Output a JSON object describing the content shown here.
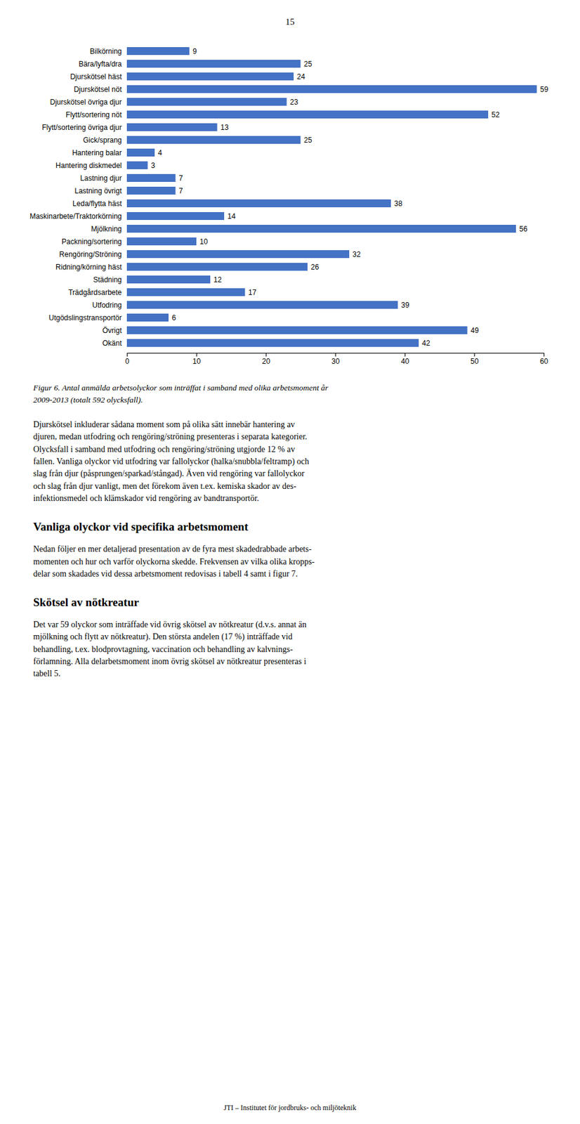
{
  "chart_data": {
    "type": "bar",
    "orientation": "horizontal",
    "categories": [
      "Bilkörning",
      "Bära/lyfta/dra",
      "Djurskötsel häst",
      "Djurskötsel nöt",
      "Djurskötsel övriga djur",
      "Flytt/sortering nöt",
      "Flytt/sortering övriga djur",
      "Gick/sprang",
      "Hantering balar",
      "Hantering diskmedel",
      "Lastning djur",
      "Lastning övrigt",
      "Leda/flytta häst",
      "Maskinarbete/Traktorkörning",
      "Mjölkning",
      "Packning/sortering",
      "Rengöring/Ströning",
      "Ridning/körning häst",
      "Städning",
      "Trädgårdsarbete",
      "Utfodring",
      "Utgödslingstransportör",
      "Övrigt",
      "Okänt"
    ],
    "values": [
      9,
      25,
      24,
      59,
      23,
      52,
      13,
      25,
      4,
      3,
      7,
      7,
      38,
      14,
      56,
      10,
      32,
      26,
      12,
      17,
      39,
      6,
      49,
      42
    ],
    "color": "#4472C4",
    "xlim": [
      0,
      60
    ],
    "xticks": [
      0,
      10,
      20,
      30,
      40,
      50,
      60
    ],
    "data_labels": true,
    "grid": false,
    "page_number": "15",
    "caption": "Figur 6. Antal anmälda arbetsolyckor som inträffat i samband med olika arbetsmoment år\n2009-2013 (totalt 592 olycksfall).",
    "sections": [
      {
        "text": "Djurskötsel inkluderar sådana moment som på olika sätt innebär hantering av\ndjuren, medan utfodring och rengöring/ströning presenteras i separata kategorier.\nOlycksfall i samband med utfodring och rengöring/ströning utgjorde 12 % av\nfallen. Vanliga olyckor vid utfodring var fallolyckor (halka/snubbla/feltramp) och\nslag från djur (påsprungen/sparkad/stångad). Även vid rengöring var fallolyckor\noch slag från djur vanligt, men det förekom även t.ex. kemiska skador av des-\ninfektionsmedel och klämskador vid rengöring av bandtransportör."
      },
      {
        "heading": "Vanliga olyckor vid specifika arbetsmoment",
        "text": "Nedan följer en mer detaljerad presentation av de fyra mest skadedrabbade arbets-\nmomenten och hur och varför olyckorna skedde. Frekvensen av vilka olika kropps-\ndelar som skadades vid dessa arbetsmoment redovisas i tabell 4 samt i figur 7."
      },
      {
        "heading": "Skötsel av nötkreatur",
        "text": "Det var 59 olyckor som inträffade vid övrig skötsel av nötkreatur (d.v.s. annat än\nmjölkning och flytt av nötkreatur). Den största andelen (17 %) inträffade vid\nbehandling, t.ex. blodprovtagning, vaccination och behandling av kalvnings-\nförlamning. Alla delarbetsmoment inom övrig skötsel av nötkreatur presenteras i\ntabell 5."
      }
    ],
    "footer": "JTI – Institutet för jordbruks- och miljöteknik"
  }
}
